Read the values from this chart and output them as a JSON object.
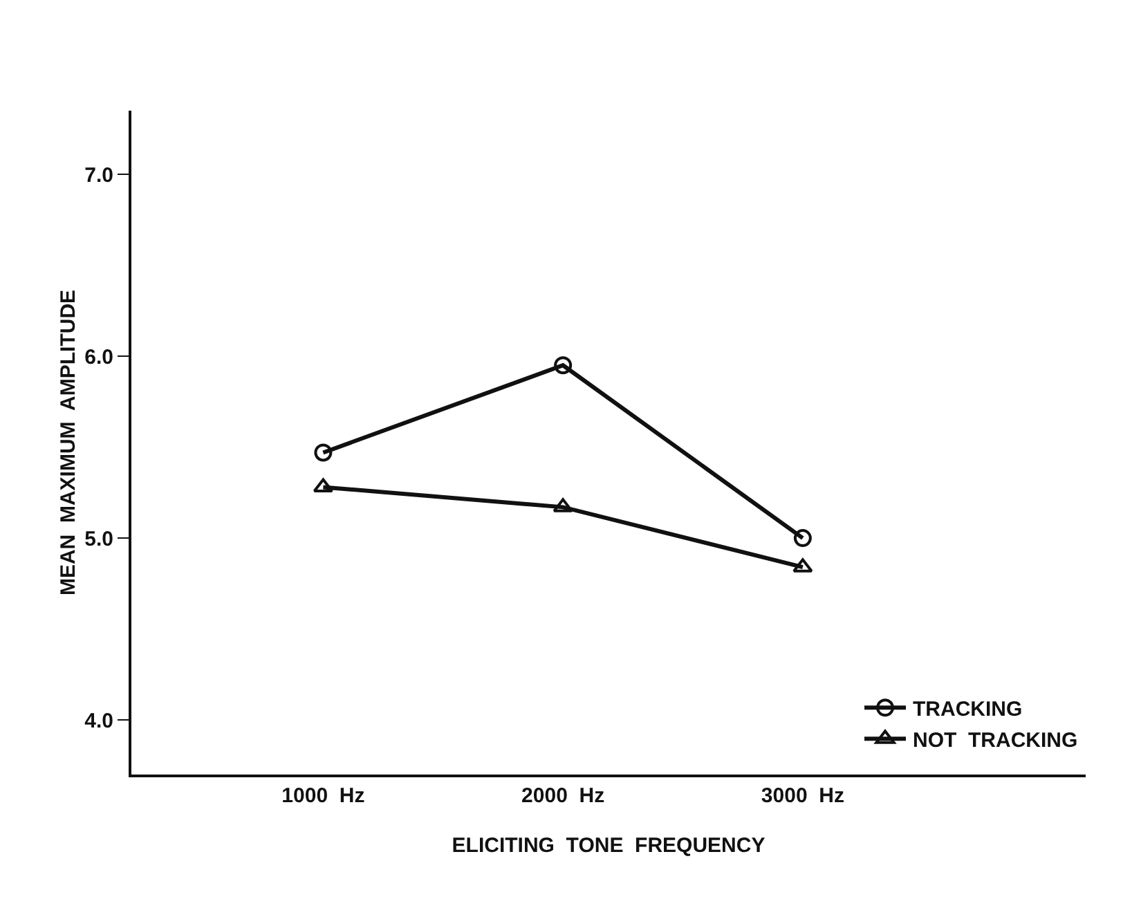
{
  "chart_data": {
    "type": "line",
    "xlabel": "ELICITING  TONE  FREQUENCY",
    "ylabel": "MEAN  MAXIMUM  AMPLITUDE",
    "x": [
      1000,
      2000,
      3000
    ],
    "series": [
      {
        "name": "TRACKING",
        "color": "#111111",
        "marker": "circle",
        "values": [
          5.47,
          5.95,
          5.0
        ]
      },
      {
        "name": "NOT  TRACKING",
        "color": "#111111",
        "marker": "triangle",
        "values": [
          5.28,
          5.17,
          4.84
        ]
      }
    ],
    "xlim": [
      200,
      4180
    ],
    "xticks": [
      {
        "value": 1000,
        "label": "1000  Hz"
      },
      {
        "value": 2000,
        "label": "2000  Hz"
      },
      {
        "value": 3000,
        "label": "3000  Hz"
      }
    ],
    "ylim": [
      3.7,
      7.35
    ],
    "yticks": [
      {
        "value": 4,
        "label": "4.0"
      },
      {
        "value": 5,
        "label": "5.0"
      },
      {
        "value": 6,
        "label": "6.0"
      },
      {
        "value": 7,
        "label": "7.0"
      }
    ],
    "grid": false,
    "legend": "bottom right",
    "line_style": "solid"
  }
}
